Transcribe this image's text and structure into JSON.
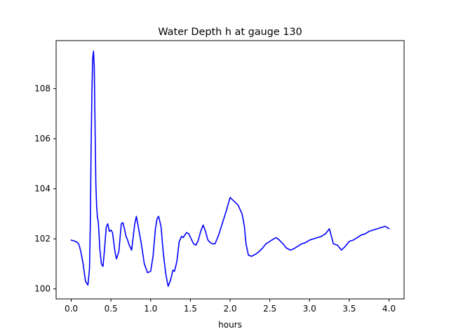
{
  "chart_data": {
    "type": "line",
    "title": "Water Depth h at gauge 130",
    "xlabel": "hours",
    "ylabel": "",
    "xlim": [
      -0.19,
      4.19
    ],
    "ylim": [
      99.6,
      109.92
    ],
    "x_ticks": [
      "0.0",
      "0.5",
      "1.0",
      "1.5",
      "2.0",
      "2.5",
      "3.0",
      "3.5",
      "4.0"
    ],
    "y_ticks": [
      "100",
      "102",
      "104",
      "106",
      "108"
    ],
    "grid": false,
    "line_color": "#0000ff",
    "series": [
      {
        "x": [
          0.0,
          0.05,
          0.08,
          0.1,
          0.12,
          0.15,
          0.18,
          0.21,
          0.23,
          0.24,
          0.25,
          0.26,
          0.27,
          0.28,
          0.29,
          0.3,
          0.31,
          0.32,
          0.33,
          0.34,
          0.35,
          0.36,
          0.38,
          0.4,
          0.42,
          0.44,
          0.46,
          0.48,
          0.5,
          0.52,
          0.55,
          0.57,
          0.6,
          0.63,
          0.65,
          0.67,
          0.69,
          0.71,
          0.73,
          0.76,
          0.8,
          0.82,
          0.84,
          0.86,
          0.88,
          0.92,
          0.96,
          1.0,
          1.03,
          1.06,
          1.08,
          1.1,
          1.13,
          1.16,
          1.19,
          1.22,
          1.25,
          1.28,
          1.3,
          1.33,
          1.36,
          1.39,
          1.41,
          1.43,
          1.45,
          1.48,
          1.51,
          1.54,
          1.57,
          1.6,
          1.63,
          1.66,
          1.69,
          1.72,
          1.75,
          1.78,
          1.81,
          1.85,
          1.9,
          1.95,
          2.0,
          2.05,
          2.1,
          2.15,
          2.18,
          2.2,
          2.23,
          2.27,
          2.3,
          2.35,
          2.4,
          2.45,
          2.5,
          2.55,
          2.58,
          2.6,
          2.62,
          2.65,
          2.68,
          2.7,
          2.73,
          2.76,
          2.8,
          2.85,
          2.9,
          2.95,
          3.0,
          3.05,
          3.1,
          3.15,
          3.2,
          3.25,
          3.3,
          3.35,
          3.4,
          3.45,
          3.5,
          3.55,
          3.6,
          3.65,
          3.7,
          3.75,
          3.8,
          3.85,
          3.9,
          3.95,
          3.98,
          4.0
        ],
        "y": [
          101.95,
          101.9,
          101.85,
          101.75,
          101.5,
          101.0,
          100.3,
          100.15,
          100.8,
          102.5,
          105.5,
          107.8,
          109.2,
          109.5,
          108.9,
          106.5,
          104.2,
          103.3,
          102.85,
          102.7,
          102.2,
          101.6,
          101.0,
          100.9,
          101.6,
          102.45,
          102.6,
          102.3,
          102.35,
          102.25,
          101.5,
          101.2,
          101.5,
          102.6,
          102.65,
          102.4,
          102.1,
          101.95,
          101.75,
          101.55,
          102.6,
          102.9,
          102.55,
          102.2,
          101.85,
          101.0,
          100.65,
          100.7,
          101.3,
          102.4,
          102.8,
          102.9,
          102.5,
          101.4,
          100.6,
          100.1,
          100.35,
          100.75,
          100.7,
          101.1,
          101.9,
          102.1,
          102.05,
          102.15,
          102.25,
          102.2,
          102.0,
          101.8,
          101.75,
          101.95,
          102.3,
          102.55,
          102.3,
          101.95,
          101.85,
          101.8,
          101.8,
          102.1,
          102.6,
          103.1,
          103.65,
          103.5,
          103.35,
          103.0,
          102.5,
          101.8,
          101.35,
          101.3,
          101.35,
          101.45,
          101.6,
          101.8,
          101.9,
          102.0,
          102.05,
          102.0,
          101.95,
          101.85,
          101.75,
          101.65,
          101.6,
          101.55,
          101.6,
          101.7,
          101.8,
          101.85,
          101.95,
          102.0,
          102.05,
          102.1,
          102.2,
          102.4,
          101.8,
          101.75,
          101.55,
          101.7,
          101.9,
          101.95,
          102.05,
          102.15,
          102.2,
          102.3,
          102.35,
          102.4,
          102.45,
          102.5,
          102.45,
          102.4
        ]
      }
    ]
  }
}
